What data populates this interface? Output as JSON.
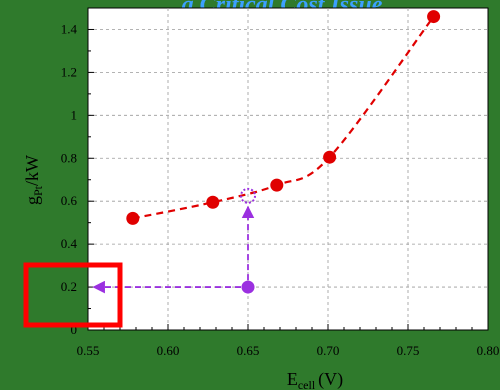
{
  "chart_data": {
    "type": "scatter",
    "title": "a Critical Cost Issue",
    "xlabel": "E",
    "xlabel_sub": "cell",
    "xlabel_unit": "(V)",
    "ylabel": "g",
    "ylabel_sub": "Pt",
    "ylabel_unit": "/kW",
    "xlim": [
      0.55,
      0.8
    ],
    "ylim": [
      0,
      1.5
    ],
    "xticks": [
      "0.55",
      "0.60",
      "0.65",
      "0.70",
      "0.75",
      "0.80"
    ],
    "yticks": [
      "0",
      "0.2",
      "0.4",
      "0.6",
      "0.8",
      "1",
      "1.2",
      "1.4"
    ],
    "grid": true,
    "series": [
      {
        "marker": "circle",
        "line": "dashed",
        "color": "#e00000",
        "x": [
          0.578,
          0.628,
          0.668,
          0.701,
          0.766
        ],
        "y": [
          0.52,
          0.595,
          0.675,
          0.805,
          1.46
        ]
      }
    ],
    "annotations": {
      "open_point": {
        "x": 0.65,
        "y": 0.625,
        "color": "#9b30e0"
      },
      "filled_point": {
        "x": 0.65,
        "y": 0.2,
        "color": "#9b30e0"
      },
      "arrows_color": "#9b30e0",
      "highlight_box_color": "#ff0000"
    }
  }
}
